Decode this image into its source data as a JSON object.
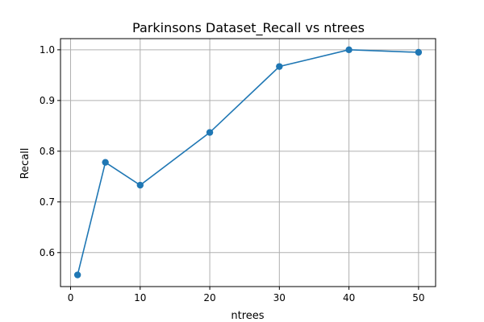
{
  "chart_data": {
    "type": "line",
    "title": "Parkinsons Dataset_Recall vs ntrees",
    "xlabel": "ntrees",
    "ylabel": "Recall",
    "grid": true,
    "xlim": [
      -1.45,
      52.45
    ],
    "ylim": [
      0.533,
      1.022
    ],
    "xticks": [
      0,
      10,
      20,
      30,
      40,
      50
    ],
    "yticks": [
      0.6,
      0.7,
      0.8,
      0.9,
      1.0
    ],
    "xtick_labels": [
      "0",
      "10",
      "20",
      "30",
      "40",
      "50"
    ],
    "ytick_labels": [
      "0.6",
      "0.7",
      "0.8",
      "0.9",
      "1.0"
    ],
    "series": [
      {
        "color": "#1f77b4",
        "marker": "circle",
        "x": [
          1,
          5,
          10,
          20,
          30,
          40,
          50
        ],
        "y": [
          0.556,
          0.778,
          0.733,
          0.837,
          0.967,
          1.0,
          0.995
        ]
      }
    ]
  }
}
